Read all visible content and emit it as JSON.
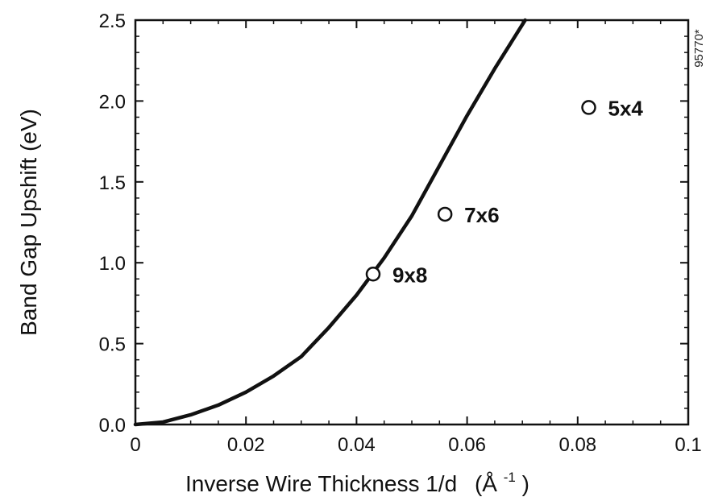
{
  "chart_data": {
    "type": "scatter",
    "title": "",
    "xlabel": "Inverse Wire Thickness 1/d",
    "xlabel_unit": "(Å",
    "xlabel_unit_exp": "-1",
    "xlabel_unit_close": ")",
    "ylabel": "Band Gap Upshift (eV)",
    "xlim": [
      0,
      0.1
    ],
    "ylim": [
      0,
      2.5
    ],
    "x_ticks": [
      0,
      0.02,
      0.04,
      0.06,
      0.08,
      0.1
    ],
    "x_tick_labels": [
      "0",
      "0.02",
      "0.04",
      "0.06",
      "0.08",
      "0.1"
    ],
    "y_ticks": [
      0,
      0.5,
      1.0,
      1.5,
      2.0,
      2.5
    ],
    "y_tick_labels": [
      "0.0",
      "0.5",
      "1.0",
      "1.5",
      "2.0",
      "2.5"
    ],
    "grid": false,
    "side_annotation": "95770*",
    "points": [
      {
        "label": "9x8",
        "x": 0.043,
        "y": 0.93
      },
      {
        "label": "7x6",
        "x": 0.056,
        "y": 1.3
      },
      {
        "label": "5x4",
        "x": 0.082,
        "y": 1.96
      }
    ],
    "curve": {
      "x": [
        0,
        0.005,
        0.01,
        0.015,
        0.02,
        0.025,
        0.03,
        0.035,
        0.04,
        0.045,
        0.05,
        0.055,
        0.06,
        0.065,
        0.0705
      ],
      "y": [
        0,
        0.015,
        0.06,
        0.12,
        0.2,
        0.3,
        0.42,
        0.6,
        0.8,
        1.03,
        1.29,
        1.6,
        1.91,
        2.2,
        2.5
      ]
    }
  }
}
